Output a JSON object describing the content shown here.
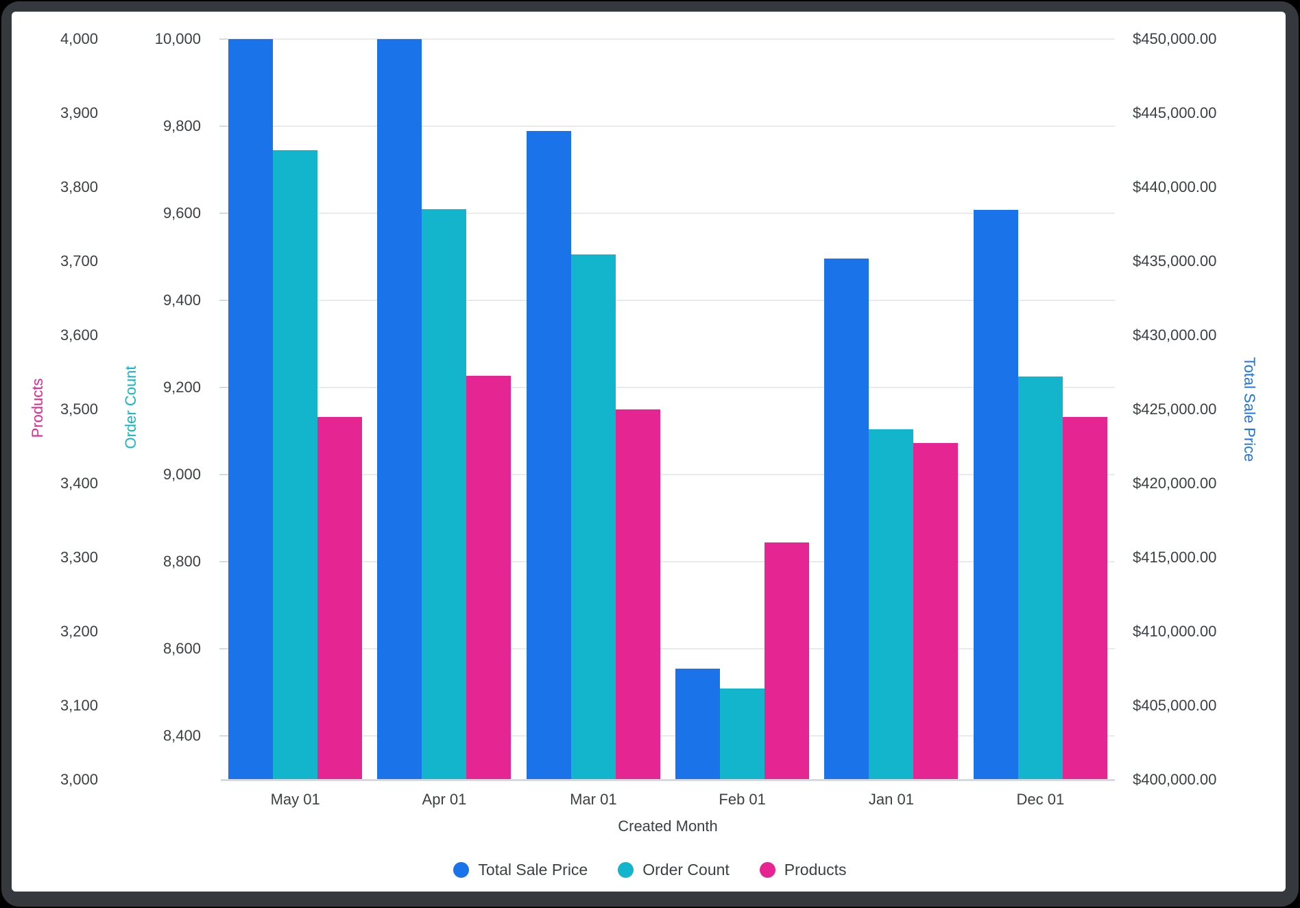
{
  "chart_data": {
    "type": "bar",
    "categories": [
      "May 01",
      "Apr 01",
      "Mar 01",
      "Feb 01",
      "Jan 01",
      "Dec 01"
    ],
    "xlabel": "Created Month",
    "legend_position": "bottom",
    "grid": "horizontal",
    "series": [
      {
        "name": "Total Sale Price",
        "axis": "tsp",
        "color": "#1A73E8",
        "values": [
          450000,
          450000,
          443800,
          407500,
          435200,
          438450
        ]
      },
      {
        "name": "Order Count",
        "axis": "order",
        "color": "#12B5CB",
        "values": [
          9745,
          9610,
          9505,
          8510,
          9105,
          9225
        ]
      },
      {
        "name": "Products",
        "axis": "products",
        "color": "#E52592",
        "values": [
          3490,
          3545,
          3500,
          3320,
          3455,
          3490
        ]
      }
    ],
    "axes": {
      "products": {
        "title": "Products",
        "title_color": "#E52592",
        "position": "left-outer",
        "min": 3000,
        "max": 4000,
        "ticks": [
          {
            "v": 4000,
            "label": "4,000"
          },
          {
            "v": 3900,
            "label": "3,900"
          },
          {
            "v": 3800,
            "label": "3,800"
          },
          {
            "v": 3700,
            "label": "3,700"
          },
          {
            "v": 3600,
            "label": "3,600"
          },
          {
            "v": 3500,
            "label": "3,500"
          },
          {
            "v": 3400,
            "label": "3,400"
          },
          {
            "v": 3300,
            "label": "3,300"
          },
          {
            "v": 3200,
            "label": "3,200"
          },
          {
            "v": 3100,
            "label": "3,100"
          },
          {
            "v": 3000,
            "label": "3,000"
          }
        ]
      },
      "order": {
        "title": "Order Count",
        "title_color": "#12B5CB",
        "position": "left-inner",
        "min": 8300,
        "max": 10000,
        "gridlines": true,
        "ticks": [
          {
            "v": 10000,
            "label": "10,000"
          },
          {
            "v": 9800,
            "label": "9,800"
          },
          {
            "v": 9600,
            "label": "9,600"
          },
          {
            "v": 9400,
            "label": "9,400"
          },
          {
            "v": 9200,
            "label": "9,200"
          },
          {
            "v": 9000,
            "label": "9,000"
          },
          {
            "v": 8800,
            "label": "8,800"
          },
          {
            "v": 8600,
            "label": "8,600"
          },
          {
            "v": 8400,
            "label": "8,400"
          }
        ]
      },
      "tsp": {
        "title": "Total Sale Price",
        "title_color": "#1A73E8",
        "position": "right",
        "min": 400000,
        "max": 450000,
        "ticks": [
          {
            "v": 450000,
            "label": "$450,000.00"
          },
          {
            "v": 445000,
            "label": "$445,000.00"
          },
          {
            "v": 440000,
            "label": "$440,000.00"
          },
          {
            "v": 435000,
            "label": "$435,000.00"
          },
          {
            "v": 430000,
            "label": "$430,000.00"
          },
          {
            "v": 425000,
            "label": "$425,000.00"
          },
          {
            "v": 420000,
            "label": "$420,000.00"
          },
          {
            "v": 415000,
            "label": "$415,000.00"
          },
          {
            "v": 410000,
            "label": "$410,000.00"
          },
          {
            "v": 405000,
            "label": "$405,000.00"
          },
          {
            "v": 400000,
            "label": "$400,000.00"
          }
        ]
      }
    }
  }
}
